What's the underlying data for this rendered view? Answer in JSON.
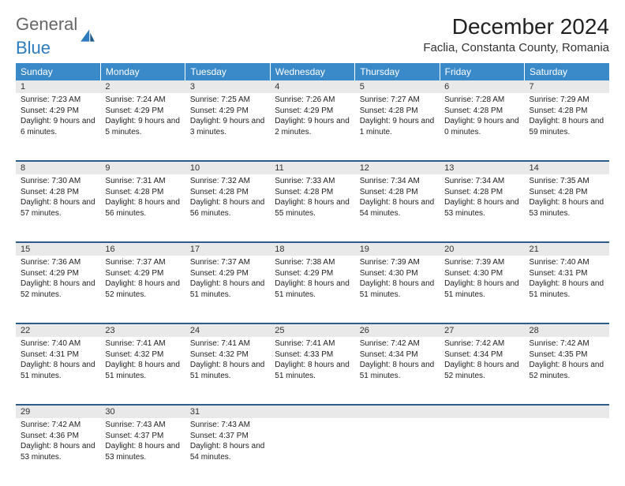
{
  "brand": {
    "part1": "General",
    "part2": "Blue"
  },
  "title": "December 2024",
  "location": "Faclia, Constanta County, Romania",
  "colors": {
    "header_bg": "#3a89c9",
    "row_divider": "#2b5f8a",
    "daynum_bg": "#e9e9e9"
  },
  "weekdays": [
    "Sunday",
    "Monday",
    "Tuesday",
    "Wednesday",
    "Thursday",
    "Friday",
    "Saturday"
  ],
  "weeks": [
    [
      {
        "n": "1",
        "sr": "Sunrise: 7:23 AM",
        "ss": "Sunset: 4:29 PM",
        "dl": "Daylight: 9 hours and 6 minutes."
      },
      {
        "n": "2",
        "sr": "Sunrise: 7:24 AM",
        "ss": "Sunset: 4:29 PM",
        "dl": "Daylight: 9 hours and 5 minutes."
      },
      {
        "n": "3",
        "sr": "Sunrise: 7:25 AM",
        "ss": "Sunset: 4:29 PM",
        "dl": "Daylight: 9 hours and 3 minutes."
      },
      {
        "n": "4",
        "sr": "Sunrise: 7:26 AM",
        "ss": "Sunset: 4:29 PM",
        "dl": "Daylight: 9 hours and 2 minutes."
      },
      {
        "n": "5",
        "sr": "Sunrise: 7:27 AM",
        "ss": "Sunset: 4:28 PM",
        "dl": "Daylight: 9 hours and 1 minute."
      },
      {
        "n": "6",
        "sr": "Sunrise: 7:28 AM",
        "ss": "Sunset: 4:28 PM",
        "dl": "Daylight: 9 hours and 0 minutes."
      },
      {
        "n": "7",
        "sr": "Sunrise: 7:29 AM",
        "ss": "Sunset: 4:28 PM",
        "dl": "Daylight: 8 hours and 59 minutes."
      }
    ],
    [
      {
        "n": "8",
        "sr": "Sunrise: 7:30 AM",
        "ss": "Sunset: 4:28 PM",
        "dl": "Daylight: 8 hours and 57 minutes."
      },
      {
        "n": "9",
        "sr": "Sunrise: 7:31 AM",
        "ss": "Sunset: 4:28 PM",
        "dl": "Daylight: 8 hours and 56 minutes."
      },
      {
        "n": "10",
        "sr": "Sunrise: 7:32 AM",
        "ss": "Sunset: 4:28 PM",
        "dl": "Daylight: 8 hours and 56 minutes."
      },
      {
        "n": "11",
        "sr": "Sunrise: 7:33 AM",
        "ss": "Sunset: 4:28 PM",
        "dl": "Daylight: 8 hours and 55 minutes."
      },
      {
        "n": "12",
        "sr": "Sunrise: 7:34 AM",
        "ss": "Sunset: 4:28 PM",
        "dl": "Daylight: 8 hours and 54 minutes."
      },
      {
        "n": "13",
        "sr": "Sunrise: 7:34 AM",
        "ss": "Sunset: 4:28 PM",
        "dl": "Daylight: 8 hours and 53 minutes."
      },
      {
        "n": "14",
        "sr": "Sunrise: 7:35 AM",
        "ss": "Sunset: 4:28 PM",
        "dl": "Daylight: 8 hours and 53 minutes."
      }
    ],
    [
      {
        "n": "15",
        "sr": "Sunrise: 7:36 AM",
        "ss": "Sunset: 4:29 PM",
        "dl": "Daylight: 8 hours and 52 minutes."
      },
      {
        "n": "16",
        "sr": "Sunrise: 7:37 AM",
        "ss": "Sunset: 4:29 PM",
        "dl": "Daylight: 8 hours and 52 minutes."
      },
      {
        "n": "17",
        "sr": "Sunrise: 7:37 AM",
        "ss": "Sunset: 4:29 PM",
        "dl": "Daylight: 8 hours and 51 minutes."
      },
      {
        "n": "18",
        "sr": "Sunrise: 7:38 AM",
        "ss": "Sunset: 4:29 PM",
        "dl": "Daylight: 8 hours and 51 minutes."
      },
      {
        "n": "19",
        "sr": "Sunrise: 7:39 AM",
        "ss": "Sunset: 4:30 PM",
        "dl": "Daylight: 8 hours and 51 minutes."
      },
      {
        "n": "20",
        "sr": "Sunrise: 7:39 AM",
        "ss": "Sunset: 4:30 PM",
        "dl": "Daylight: 8 hours and 51 minutes."
      },
      {
        "n": "21",
        "sr": "Sunrise: 7:40 AM",
        "ss": "Sunset: 4:31 PM",
        "dl": "Daylight: 8 hours and 51 minutes."
      }
    ],
    [
      {
        "n": "22",
        "sr": "Sunrise: 7:40 AM",
        "ss": "Sunset: 4:31 PM",
        "dl": "Daylight: 8 hours and 51 minutes."
      },
      {
        "n": "23",
        "sr": "Sunrise: 7:41 AM",
        "ss": "Sunset: 4:32 PM",
        "dl": "Daylight: 8 hours and 51 minutes."
      },
      {
        "n": "24",
        "sr": "Sunrise: 7:41 AM",
        "ss": "Sunset: 4:32 PM",
        "dl": "Daylight: 8 hours and 51 minutes."
      },
      {
        "n": "25",
        "sr": "Sunrise: 7:41 AM",
        "ss": "Sunset: 4:33 PM",
        "dl": "Daylight: 8 hours and 51 minutes."
      },
      {
        "n": "26",
        "sr": "Sunrise: 7:42 AM",
        "ss": "Sunset: 4:34 PM",
        "dl": "Daylight: 8 hours and 51 minutes."
      },
      {
        "n": "27",
        "sr": "Sunrise: 7:42 AM",
        "ss": "Sunset: 4:34 PM",
        "dl": "Daylight: 8 hours and 52 minutes."
      },
      {
        "n": "28",
        "sr": "Sunrise: 7:42 AM",
        "ss": "Sunset: 4:35 PM",
        "dl": "Daylight: 8 hours and 52 minutes."
      }
    ],
    [
      {
        "n": "29",
        "sr": "Sunrise: 7:42 AM",
        "ss": "Sunset: 4:36 PM",
        "dl": "Daylight: 8 hours and 53 minutes."
      },
      {
        "n": "30",
        "sr": "Sunrise: 7:43 AM",
        "ss": "Sunset: 4:37 PM",
        "dl": "Daylight: 8 hours and 53 minutes."
      },
      {
        "n": "31",
        "sr": "Sunrise: 7:43 AM",
        "ss": "Sunset: 4:37 PM",
        "dl": "Daylight: 8 hours and 54 minutes."
      },
      null,
      null,
      null,
      null
    ]
  ]
}
